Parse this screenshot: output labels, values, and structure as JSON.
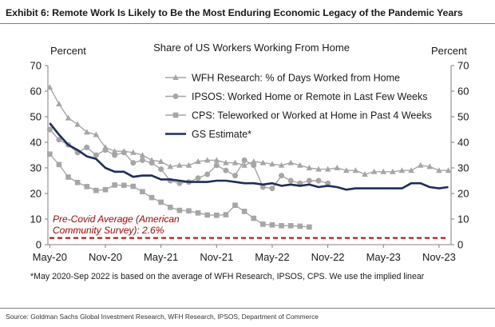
{
  "exhibit": {
    "title": "Exhibit 6: Remote Work Is Likely to Be the Most Enduring Economic Legacy of the Pandemic Years",
    "footnote": "*May 2020-Sep 2022 is based on the average of WFH Research, IPSOS, CPS. We use the implied linear",
    "source": "Source: Goldman Sachs Global Investment Research, WFH Research, IPSOS, Department of Commerce"
  },
  "chart_data": {
    "type": "line",
    "title": "Share of US Workers Working From Home",
    "ylabel_left": "Percent",
    "ylabel_right": "Percent",
    "ylim": [
      0,
      70
    ],
    "yticks": [
      0,
      10,
      20,
      30,
      40,
      50,
      60,
      70
    ],
    "xlim": [
      "2020-05",
      "2023-12"
    ],
    "x_tick_labels": [
      "May-20",
      "Nov-20",
      "May-21",
      "Nov-21",
      "May-22",
      "Nov-22",
      "May-23",
      "Nov-23"
    ],
    "x_tick_months": [
      "2020-05",
      "2020-11",
      "2021-05",
      "2021-11",
      "2022-05",
      "2022-11",
      "2023-05",
      "2023-11"
    ],
    "grid": false,
    "legend_position": "top-right",
    "series": [
      {
        "name": "WFH Research: % of Days Worked from Home",
        "color": "#a6a6a6",
        "marker": "triangle",
        "x": [
          "2020-05",
          "2020-06",
          "2020-07",
          "2020-08",
          "2020-09",
          "2020-10",
          "2020-11",
          "2020-12",
          "2021-01",
          "2021-02",
          "2021-03",
          "2021-04",
          "2021-05",
          "2021-06",
          "2021-07",
          "2021-08",
          "2021-09",
          "2021-10",
          "2021-11",
          "2021-12",
          "2022-01",
          "2022-02",
          "2022-03",
          "2022-04",
          "2022-05",
          "2022-06",
          "2022-07",
          "2022-08",
          "2022-09",
          "2022-10",
          "2022-11",
          "2022-12",
          "2023-01",
          "2023-02",
          "2023-03",
          "2023-04",
          "2023-05",
          "2023-06",
          "2023-07",
          "2023-08",
          "2023-09",
          "2023-10",
          "2023-11",
          "2023-12"
        ],
        "values": [
          61.5,
          55,
          49.5,
          47,
          44,
          43,
          38,
          36.5,
          36.5,
          36,
          35,
          33,
          32.5,
          30.5,
          31,
          31,
          32.5,
          33,
          33,
          32,
          32,
          31,
          32.5,
          32,
          31.5,
          31,
          32,
          31,
          30,
          29.5,
          29.5,
          30,
          29,
          29,
          27.5,
          28.5,
          28.5,
          28.5,
          29,
          29,
          31,
          30.5,
          29,
          29
        ]
      },
      {
        "name": "IPSOS: Worked Home or Remote in Last Few Weeks",
        "color": "#a6a6a6",
        "marker": "circle",
        "x": [
          "2020-05",
          "2020-06",
          "2020-07",
          "2020-08",
          "2020-09",
          "2020-10",
          "2020-11",
          "2020-12",
          "2021-01",
          "2021-02",
          "2021-03",
          "2021-04",
          "2021-05",
          "2021-06",
          "2021-07",
          "2021-08",
          "2021-09",
          "2021-10",
          "2021-11",
          "2021-12",
          "2022-01",
          "2022-02",
          "2022-03",
          "2022-04",
          "2022-05",
          "2022-06",
          "2022-07",
          "2022-08",
          "2022-09",
          "2022-10",
          "2022-11"
        ],
        "values": [
          45,
          41,
          39,
          36,
          38,
          35,
          37,
          35,
          36,
          32,
          33,
          32,
          29.5,
          25,
          24,
          24.5,
          26,
          27.5,
          31,
          29,
          27,
          33,
          31,
          22.5,
          22,
          27,
          25,
          24,
          25,
          25,
          24
        ]
      },
      {
        "name": "CPS: Teleworked or Worked at Home in Past 4 Weeks",
        "color": "#a6a6a6",
        "marker": "square",
        "x": [
          "2020-05",
          "2020-06",
          "2020-07",
          "2020-08",
          "2020-09",
          "2020-10",
          "2020-11",
          "2020-12",
          "2021-01",
          "2021-02",
          "2021-03",
          "2021-04",
          "2021-05",
          "2021-06",
          "2021-07",
          "2021-08",
          "2021-09",
          "2021-10",
          "2021-11",
          "2021-12",
          "2022-01",
          "2022-02",
          "2022-03",
          "2022-04",
          "2022-05",
          "2022-06",
          "2022-07",
          "2022-08",
          "2022-09"
        ],
        "values": [
          35.4,
          31.3,
          26.4,
          24.3,
          22.7,
          21.2,
          21.5,
          23.3,
          23.2,
          22.8,
          20.7,
          18.4,
          16.6,
          14.6,
          13.4,
          13.2,
          12.4,
          11.6,
          11.5,
          11.7,
          15.4,
          13.0,
          10.3,
          8.0,
          7.7,
          7.4,
          7.4,
          7.2,
          6.9
        ]
      },
      {
        "name": "GS Estimate*",
        "color": "#1f2d5a",
        "marker": "none",
        "x": [
          "2020-05",
          "2020-06",
          "2020-07",
          "2020-08",
          "2020-09",
          "2020-10",
          "2020-11",
          "2020-12",
          "2021-01",
          "2021-02",
          "2021-03",
          "2021-04",
          "2021-05",
          "2021-06",
          "2021-07",
          "2021-08",
          "2021-09",
          "2021-10",
          "2021-11",
          "2021-12",
          "2022-01",
          "2022-02",
          "2022-03",
          "2022-04",
          "2022-05",
          "2022-06",
          "2022-07",
          "2022-08",
          "2022-09",
          "2022-10",
          "2022-11",
          "2022-12",
          "2023-01",
          "2023-02",
          "2023-03",
          "2023-04",
          "2023-05",
          "2023-06",
          "2023-07",
          "2023-08",
          "2023-09",
          "2023-10",
          "2023-11",
          "2023-12"
        ],
        "values": [
          47.5,
          43,
          39,
          37,
          34.5,
          33.5,
          30,
          28.5,
          28.5,
          26.5,
          27,
          27,
          25.5,
          25.5,
          25,
          24.5,
          24.5,
          24.5,
          25,
          25,
          24.5,
          24,
          24,
          23.5,
          24,
          23,
          23.5,
          23,
          23.5,
          22.5,
          23,
          22.5,
          21.5,
          22,
          22,
          22,
          22,
          22,
          22,
          24,
          24,
          22.5,
          22,
          22.5
        ]
      }
    ],
    "reference_line": {
      "value": 2.6,
      "color": "#c00000",
      "label_line1": "Pre-Covid Average (American",
      "label_line2": "Community Survey): 2.6%"
    }
  }
}
